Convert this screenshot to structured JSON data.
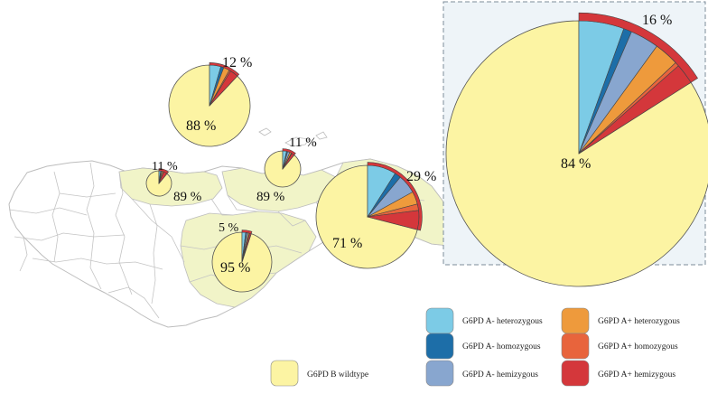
{
  "colors": {
    "wildtype": "#fcf4a3",
    "a_minus_het": "#7ccbe6",
    "a_minus_hom": "#1d6ea8",
    "a_minus_hemi": "#88a6cf",
    "a_plus_het": "#ee9a3c",
    "a_plus_hom": "#e8643c",
    "a_plus_hemi": "#d4373b",
    "region_fill": "#f1f4c8",
    "border": "#bdbdbd",
    "inset_bg": "#eef4f8"
  },
  "legend": {
    "a_minus_het": "G6PD A- heterozygous",
    "a_minus_hom": "G6PD A- homozygous",
    "a_minus_hemi": "G6PD A- hemizygous",
    "a_plus_het": "G6PD A+ heterozygous",
    "a_plus_hom": "G6PD A+ homozygous",
    "a_plus_hemi": "G6PD A+ hemizygous",
    "wildtype": "G6PD B wildtype"
  },
  "pies": [
    {
      "id": "pie-north",
      "variant_label": "12 %",
      "wildtype_label": "88 %",
      "variant_pct": 12,
      "slices": [
        4.5,
        1.2,
        0,
        2.4,
        0.6,
        3.3
      ]
    },
    {
      "id": "pie-west",
      "variant_label": "11 %",
      "wildtype_label": "89 %",
      "variant_pct": 11,
      "slices": [
        2.2,
        0.8,
        1.2,
        1.6,
        0.4,
        4.8
      ]
    },
    {
      "id": "pie-central-north",
      "variant_label": "11 %",
      "wildtype_label": "89 %",
      "variant_pct": 11,
      "slices": [
        3.5,
        1.0,
        2.0,
        1.5,
        0.5,
        2.5
      ]
    },
    {
      "id": "pie-south",
      "variant_label": "5 %",
      "wildtype_label": "95 %",
      "variant_pct": 5,
      "slices": [
        2.0,
        0.5,
        0.8,
        0.7,
        0.2,
        0.8
      ]
    },
    {
      "id": "pie-east",
      "variant_label": "29 %",
      "wildtype_label": "71 %",
      "variant_pct": 29,
      "slices": [
        9.0,
        2.0,
        6.0,
        4.0,
        2.0,
        6.0
      ]
    },
    {
      "id": "pie-inset",
      "variant_label": "16 %",
      "wildtype_label": "84 %",
      "variant_pct": 16,
      "slices": [
        5.5,
        1.0,
        3.5,
        3.0,
        0.5,
        2.5
      ]
    }
  ]
}
